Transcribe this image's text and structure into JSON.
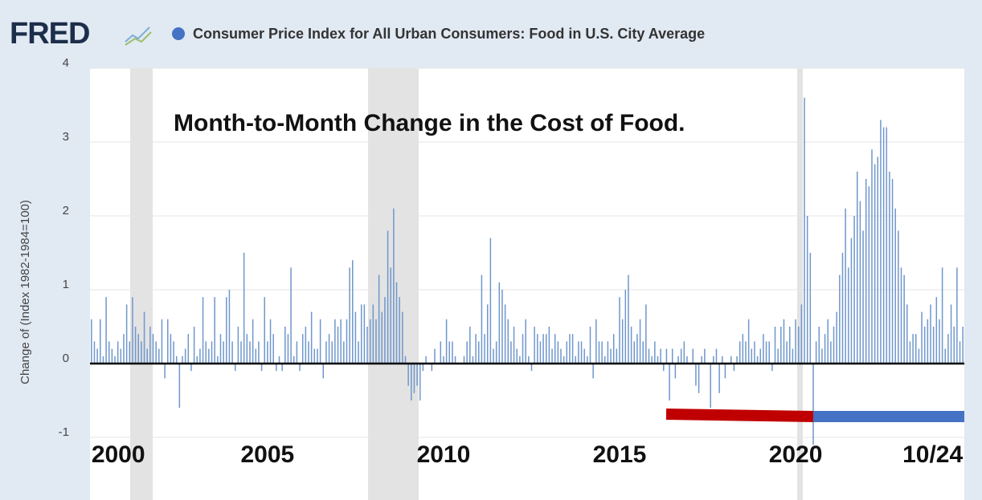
{
  "logo": "FRED",
  "chart_data": {
    "type": "bar",
    "title": "Consumer Price Index for All Urban Consumers: Food in U.S. City Average",
    "annotation": "Month-to-Month Change in the Cost of Food.",
    "y_label": "Change of (Index 1982-1984=100)",
    "color": "#6f97cc",
    "ylim": [
      -1,
      4
    ],
    "yticks": [
      -1,
      0,
      1,
      2,
      3,
      4
    ],
    "grid": true,
    "categories": [
      "2000",
      null,
      null,
      null,
      null,
      null,
      null,
      null,
      null,
      null,
      null,
      null,
      null,
      null,
      null,
      null,
      null,
      null,
      null,
      null,
      null,
      null,
      null,
      null,
      null,
      null,
      null,
      null,
      null,
      null,
      null,
      null,
      null,
      null,
      null,
      null,
      null,
      null,
      null,
      null,
      null,
      null,
      null,
      null,
      null,
      null,
      null,
      null,
      null,
      null,
      null,
      null,
      null,
      null,
      null,
      null,
      null,
      null,
      null,
      null,
      "2005",
      null,
      null,
      null,
      null,
      null,
      null,
      null,
      null,
      null,
      null,
      null,
      null,
      null,
      null,
      null,
      null,
      null,
      null,
      null,
      null,
      null,
      null,
      null,
      null,
      null,
      null,
      null,
      null,
      null,
      null,
      null,
      null,
      null,
      null,
      null,
      null,
      null,
      null,
      null,
      null,
      null,
      null,
      null,
      null,
      null,
      null,
      null,
      null,
      null,
      null,
      null,
      null,
      null,
      null,
      null,
      null,
      null,
      null,
      null,
      "2010",
      null,
      null,
      null,
      null,
      null,
      null,
      null,
      null,
      null,
      null,
      null,
      null,
      null,
      null,
      null,
      null,
      null,
      null,
      null,
      null,
      null,
      null,
      null,
      null,
      null,
      null,
      null,
      null,
      null,
      null,
      null,
      null,
      null,
      null,
      null,
      null,
      null,
      null,
      null,
      null,
      null,
      null,
      null,
      null,
      null,
      null,
      null,
      null,
      null,
      null,
      null,
      null,
      null,
      null,
      null,
      null,
      null,
      null,
      null,
      "2015",
      null,
      null,
      null,
      null,
      null,
      null,
      null,
      null,
      null,
      null,
      null,
      null,
      null,
      null,
      null,
      null,
      null,
      null,
      null,
      null,
      null,
      null,
      null,
      null,
      null,
      null,
      null,
      null,
      null,
      null,
      null,
      null,
      null,
      null,
      null,
      null,
      null,
      null,
      null,
      null,
      null,
      null,
      null,
      null,
      null,
      null,
      null,
      null,
      null,
      null,
      null,
      null,
      null,
      null,
      null,
      null,
      null,
      null,
      null,
      "2020",
      null,
      null,
      null,
      null,
      null,
      null,
      null,
      null,
      null,
      null,
      null,
      null,
      null,
      null,
      null,
      null,
      null,
      null,
      null,
      null,
      null,
      null,
      null,
      null,
      null,
      null,
      null,
      null,
      null,
      null,
      null,
      null,
      null,
      null,
      null,
      null,
      null,
      null,
      null,
      null,
      null,
      null,
      null,
      null,
      null,
      null,
      null,
      null,
      null,
      null,
      null,
      null,
      null,
      null,
      null,
      null,
      "10/24"
    ],
    "values": [
      0.6,
      0.3,
      0.2,
      0.6,
      0.1,
      0.9,
      0.3,
      0.2,
      0.1,
      0.3,
      0.2,
      0.4,
      0.8,
      0.3,
      0.9,
      0.5,
      0.4,
      0.3,
      0.7,
      0.2,
      0.5,
      0.4,
      0.3,
      0.2,
      0.6,
      -0.2,
      0.6,
      0.4,
      0.3,
      0.1,
      -0.6,
      0.1,
      0.2,
      0.4,
      -0.1,
      0.5,
      0.1,
      0.2,
      0.9,
      0.3,
      0.2,
      0.3,
      0.9,
      0.1,
      0.4,
      0.3,
      0.9,
      1.0,
      0.3,
      -0.1,
      0.5,
      0.3,
      1.5,
      0.4,
      0.3,
      0.6,
      0.2,
      0.3,
      -0.1,
      0.9,
      0.3,
      0.6,
      0.4,
      -0.1,
      0.1,
      -0.1,
      0.5,
      0.4,
      1.3,
      0.1,
      0.3,
      -0.1,
      0.4,
      0.5,
      0.3,
      0.7,
      0.2,
      0.2,
      0.6,
      -0.2,
      0.3,
      0.4,
      0.3,
      0.6,
      0.5,
      0.6,
      0.3,
      0.6,
      1.3,
      1.4,
      0.7,
      0.3,
      0.8,
      0.8,
      0.5,
      0.6,
      0.8,
      0.6,
      1.2,
      0.7,
      0.9,
      1.8,
      1.3,
      2.1,
      1.1,
      0.9,
      0.7,
      0.1,
      -0.3,
      -0.5,
      -0.4,
      -0.3,
      -0.5,
      -0.1,
      0.1,
      0.0,
      -0.1,
      0.2,
      0.0,
      0.3,
      0.1,
      0.6,
      0.3,
      0.3,
      0.1,
      0.0,
      0.0,
      0.1,
      0.3,
      0.5,
      0.1,
      0.4,
      0.3,
      1.2,
      0.4,
      0.8,
      1.7,
      0.2,
      0.3,
      1.1,
      1.0,
      0.8,
      0.6,
      0.3,
      0.5,
      0.2,
      0.1,
      0.4,
      0.6,
      0.1,
      -0.1,
      0.5,
      0.4,
      0.3,
      0.4,
      0.4,
      0.5,
      0.2,
      0.4,
      0.3,
      0.2,
      0.1,
      0.3,
      0.4,
      0.4,
      0.1,
      0.3,
      0.3,
      0.2,
      0.1,
      0.5,
      -0.2,
      0.6,
      0.3,
      0.3,
      0.1,
      0.3,
      0.2,
      0.4,
      0.2,
      0.9,
      0.6,
      1.0,
      1.2,
      0.5,
      0.3,
      0.4,
      0.6,
      0.3,
      0.8,
      0.2,
      0.1,
      0.3,
      0.1,
      0.2,
      -0.1,
      0.2,
      -0.5,
      0.2,
      -0.2,
      0.1,
      0.2,
      0.3,
      0.1,
      0.0,
      0.2,
      -0.3,
      -0.4,
      0.1,
      0.2,
      0.0,
      -0.6,
      0.1,
      0.2,
      -0.4,
      0.1,
      -0.2,
      0.0,
      0.1,
      -0.1,
      0.1,
      0.3,
      0.4,
      0.3,
      0.6,
      0.2,
      0.3,
      0.1,
      0.2,
      0.4,
      0.3,
      0.3,
      -0.1,
      0.5,
      0.2,
      0.5,
      0.6,
      0.3,
      0.5,
      0.2,
      0.6,
      0.5,
      0.8,
      3.6,
      2.0,
      1.5,
      -1.1,
      0.3,
      0.5,
      0.2,
      0.4,
      0.6,
      0.3,
      0.5,
      0.7,
      1.2,
      1.5,
      2.1,
      1.3,
      1.7,
      2.0,
      2.6,
      2.2,
      1.8,
      2.5,
      2.4,
      2.9,
      2.7,
      2.8,
      3.3,
      3.2,
      3.2,
      2.6,
      2.5,
      2.1,
      1.8,
      1.3,
      1.2,
      0.8,
      0.3,
      0.4,
      0.4,
      0.2,
      0.7,
      0.5,
      0.6,
      0.8,
      0.5,
      0.9,
      0.6,
      1.3,
      0.2,
      0.4,
      0.8,
      0.5,
      1.3,
      0.3,
      0.5
    ]
  }
}
